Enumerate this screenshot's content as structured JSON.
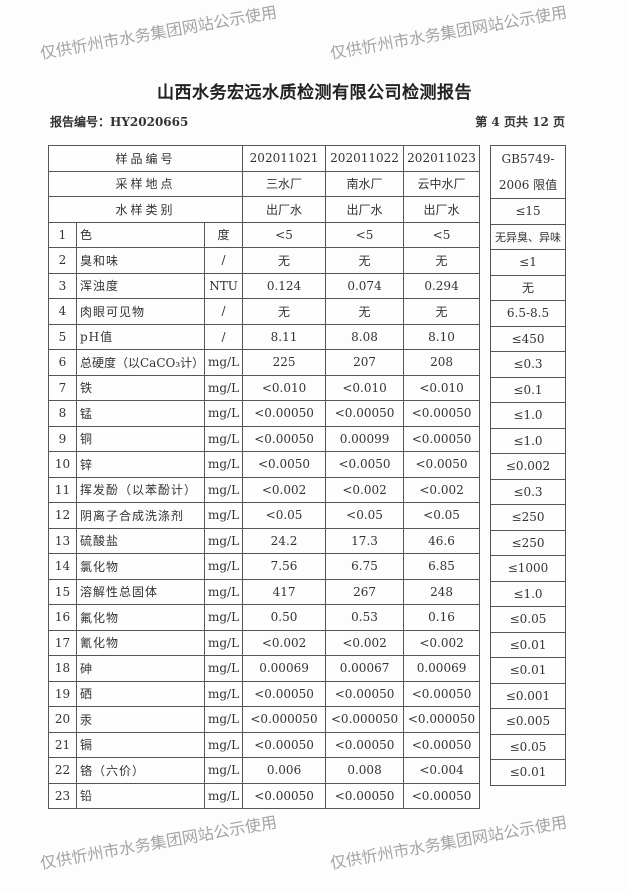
{
  "title": "山西水务宏远水质检测有限公司检测报告",
  "report_no": "报告编号：HY2020665",
  "page_info": "第 4 页共 12 页",
  "header": {
    "sample_no_label": "样品编号",
    "location_label": "采样地点",
    "type_label": "水样类别",
    "samples": [
      {
        "no": "202011021",
        "location": "三水厂",
        "type": "出厂水"
      },
      {
        "no": "202011022",
        "location": "南水厂",
        "type": "出厂水"
      },
      {
        "no": "202011023",
        "location": "云中水厂",
        "type": "出厂水"
      }
    ],
    "limit_label_1": "GB5749-",
    "limit_label_2": "2006 限值"
  },
  "rows": [
    {
      "n": "1",
      "item": "色",
      "unit": "度",
      "v": [
        "<5",
        "<5",
        "<5"
      ],
      "limit": "≤15"
    },
    {
      "n": "2",
      "item": "臭和味",
      "unit": "/",
      "v": [
        "无",
        "无",
        "无"
      ],
      "limit": "无异臭、异味"
    },
    {
      "n": "3",
      "item": "浑浊度",
      "unit": "NTU",
      "v": [
        "0.124",
        "0.074",
        "0.294"
      ],
      "limit": "≤1"
    },
    {
      "n": "4",
      "item": "肉眼可见物",
      "unit": "/",
      "v": [
        "无",
        "无",
        "无"
      ],
      "limit": "无"
    },
    {
      "n": "5",
      "item": "pH值",
      "unit": "/",
      "v": [
        "8.11",
        "8.08",
        "8.10"
      ],
      "limit": "6.5-8.5"
    },
    {
      "n": "6",
      "item": "总硬度（以CaCO₃计）",
      "unit": "mg/L",
      "v": [
        "225",
        "207",
        "208"
      ],
      "limit": "≤450"
    },
    {
      "n": "7",
      "item": "铁",
      "unit": "mg/L",
      "v": [
        "<0.010",
        "<0.010",
        "<0.010"
      ],
      "limit": "≤0.3"
    },
    {
      "n": "8",
      "item": "锰",
      "unit": "mg/L",
      "v": [
        "<0.00050",
        "<0.00050",
        "<0.00050"
      ],
      "limit": "≤0.1"
    },
    {
      "n": "9",
      "item": "铜",
      "unit": "mg/L",
      "v": [
        "<0.00050",
        "0.00099",
        "<0.00050"
      ],
      "limit": "≤1.0"
    },
    {
      "n": "10",
      "item": "锌",
      "unit": "mg/L",
      "v": [
        "<0.0050",
        "<0.0050",
        "<0.0050"
      ],
      "limit": "≤1.0"
    },
    {
      "n": "11",
      "item": "挥发酚（以苯酚计）",
      "unit": "mg/L",
      "v": [
        "<0.002",
        "<0.002",
        "<0.002"
      ],
      "limit": "≤0.002"
    },
    {
      "n": "12",
      "item": "阴离子合成洗涤剂",
      "unit": "mg/L",
      "v": [
        "<0.05",
        "<0.05",
        "<0.05"
      ],
      "limit": "≤0.3"
    },
    {
      "n": "13",
      "item": "硫酸盐",
      "unit": "mg/L",
      "v": [
        "24.2",
        "17.3",
        "46.6"
      ],
      "limit": "≤250"
    },
    {
      "n": "14",
      "item": "氯化物",
      "unit": "mg/L",
      "v": [
        "7.56",
        "6.75",
        "6.85"
      ],
      "limit": "≤250"
    },
    {
      "n": "15",
      "item": "溶解性总固体",
      "unit": "mg/L",
      "v": [
        "417",
        "267",
        "248"
      ],
      "limit": "≤1000"
    },
    {
      "n": "16",
      "item": "氟化物",
      "unit": "mg/L",
      "v": [
        "0.50",
        "0.53",
        "0.16"
      ],
      "limit": "≤1.0"
    },
    {
      "n": "17",
      "item": "氰化物",
      "unit": "mg/L",
      "v": [
        "<0.002",
        "<0.002",
        "<0.002"
      ],
      "limit": "≤0.05"
    },
    {
      "n": "18",
      "item": "砷",
      "unit": "mg/L",
      "v": [
        "0.00069",
        "0.00067",
        "0.00069"
      ],
      "limit": "≤0.01"
    },
    {
      "n": "19",
      "item": "硒",
      "unit": "mg/L",
      "v": [
        "<0.00050",
        "<0.00050",
        "<0.00050"
      ],
      "limit": "≤0.01"
    },
    {
      "n": "20",
      "item": "汞",
      "unit": "mg/L",
      "v": [
        "<0.000050",
        "<0.000050",
        "<0.000050"
      ],
      "limit": "≤0.001"
    },
    {
      "n": "21",
      "item": "镉",
      "unit": "mg/L",
      "v": [
        "<0.00050",
        "<0.00050",
        "<0.00050"
      ],
      "limit": "≤0.005"
    },
    {
      "n": "22",
      "item": "铬（六价）",
      "unit": "mg/L",
      "v": [
        "0.006",
        "0.008",
        "<0.004"
      ],
      "limit": "≤0.05"
    },
    {
      "n": "23",
      "item": "铅",
      "unit": "mg/L",
      "v": [
        "<0.00050",
        "<0.00050",
        "<0.00050"
      ],
      "limit": "≤0.01"
    }
  ],
  "watermark": "仅供忻州市水务集团网站公示使用"
}
